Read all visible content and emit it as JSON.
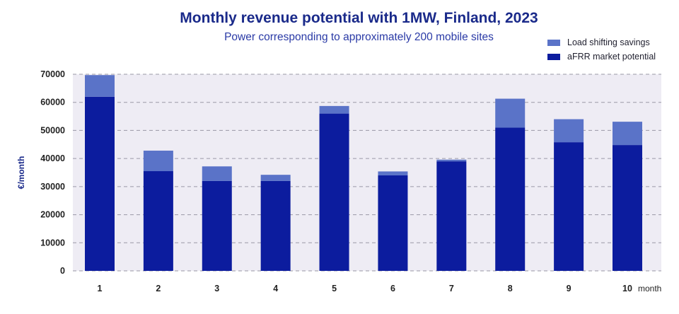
{
  "chart_data": {
    "type": "bar",
    "stacked": true,
    "title": "Monthly revenue potential with 1MW, Finland, 2023",
    "subtitle": "Power corresponding to approximately 200 mobile sites",
    "xlabel": "month",
    "ylabel": "€/month",
    "ylim": [
      0,
      70000
    ],
    "yticks": [
      0,
      10000,
      20000,
      30000,
      40000,
      50000,
      60000,
      70000
    ],
    "categories": [
      "1",
      "2",
      "3",
      "4",
      "5",
      "6",
      "7",
      "8",
      "9",
      "10"
    ],
    "series": [
      {
        "name": "aFRR market potential",
        "color": "#0c1c9e",
        "values": [
          62000,
          35500,
          32000,
          32000,
          56000,
          34000,
          39000,
          51000,
          45800,
          44800
        ]
      },
      {
        "name": "Load shifting savings",
        "color": "#5a73c8",
        "values": [
          7700,
          7300,
          5200,
          2200,
          2700,
          1400,
          600,
          10300,
          8200,
          8300
        ]
      }
    ],
    "legend_position": "top-right",
    "grid": "horizontal dashed"
  },
  "legend": [
    {
      "label": "Load shifting savings",
      "color": "#5a73c8"
    },
    {
      "label": "aFRR market potential",
      "color": "#0c1c9e"
    }
  ]
}
